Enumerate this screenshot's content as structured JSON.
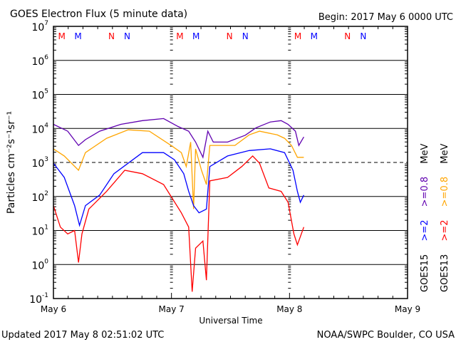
{
  "chart_data": {
    "type": "line",
    "title": "GOES Electron Flux (5 minute data)",
    "begin_label": "Begin: 2017 May 6 0000 UTC",
    "xlabel": "Universal Time",
    "ylabel": "Particles cm⁻²s⁻¹sr⁻¹",
    "x_unit": "hours since 2017-05-06 00:00 UTC",
    "xlim": [
      0,
      72
    ],
    "ylim_log10": [
      -1,
      7
    ],
    "y_scale": "log",
    "x_ticks": [
      {
        "h": 0,
        "label": "May 6"
      },
      {
        "h": 24,
        "label": "May 7"
      },
      {
        "h": 48,
        "label": "May 8"
      },
      {
        "h": 72,
        "label": "May 9"
      }
    ],
    "y_ticks": [
      {
        "exp": 7,
        "label": "7"
      },
      {
        "exp": 6,
        "label": "6"
      },
      {
        "exp": 5,
        "label": "5"
      },
      {
        "exp": 4,
        "label": "4"
      },
      {
        "exp": 3,
        "label": "3"
      },
      {
        "exp": 2,
        "label": "2"
      },
      {
        "exp": 1,
        "label": "1"
      },
      {
        "exp": 0,
        "label": "0"
      },
      {
        "exp": -1,
        "label": "-1"
      }
    ],
    "y_tick_base": "10",
    "threshold_log10": 3,
    "markers": [
      {
        "h": 1.7,
        "label": "M",
        "color": "#ff0000"
      },
      {
        "h": 5.0,
        "label": "M",
        "color": "#0000ff"
      },
      {
        "h": 11.8,
        "label": "N",
        "color": "#ff0000"
      },
      {
        "h": 15.0,
        "label": "N",
        "color": "#0000ff"
      },
      {
        "h": 25.7,
        "label": "M",
        "color": "#ff0000"
      },
      {
        "h": 29.0,
        "label": "M",
        "color": "#0000ff"
      },
      {
        "h": 35.8,
        "label": "N",
        "color": "#ff0000"
      },
      {
        "h": 39.0,
        "label": "N",
        "color": "#0000ff"
      },
      {
        "h": 49.7,
        "label": "M",
        "color": "#ff0000"
      },
      {
        "h": 53.0,
        "label": "M",
        "color": "#0000ff"
      },
      {
        "h": 59.8,
        "label": "N",
        "color": "#ff0000"
      },
      {
        "h": 63.0,
        "label": "N",
        "color": "#0000ff"
      }
    ],
    "series": [
      {
        "name": "GOES15 >=0.8 MeV",
        "color": "#6000b0",
        "points": [
          [
            0,
            4.12
          ],
          [
            2.9,
            3.92
          ],
          [
            5.1,
            3.5
          ],
          [
            6.5,
            3.67
          ],
          [
            9.4,
            3.92
          ],
          [
            13.7,
            4.12
          ],
          [
            18.1,
            4.23
          ],
          [
            22.4,
            4.29
          ],
          [
            25.3,
            4.06
          ],
          [
            27.5,
            3.92
          ],
          [
            28.9,
            3.6
          ],
          [
            30.4,
            3.15
          ],
          [
            31.4,
            3.92
          ],
          [
            32.5,
            3.6
          ],
          [
            35.4,
            3.6
          ],
          [
            39.0,
            3.8
          ],
          [
            41.2,
            4.02
          ],
          [
            44.1,
            4.19
          ],
          [
            46.3,
            4.23
          ],
          [
            47.7,
            4.12
          ],
          [
            49.2,
            3.92
          ],
          [
            49.9,
            3.5
          ],
          [
            50.9,
            3.75
          ]
        ]
      },
      {
        "name": "GOES13 >=0.8 MeV",
        "color": "#ffa500",
        "points": [
          [
            0,
            3.4
          ],
          [
            2.2,
            3.19
          ],
          [
            5.1,
            2.77
          ],
          [
            6.5,
            3.29
          ],
          [
            10.8,
            3.71
          ],
          [
            15.2,
            3.96
          ],
          [
            19.5,
            3.92
          ],
          [
            23.9,
            3.5
          ],
          [
            26.0,
            3.29
          ],
          [
            27.0,
            2.88
          ],
          [
            27.9,
            3.6
          ],
          [
            28.5,
            1.63
          ],
          [
            28.9,
            3.4
          ],
          [
            30.1,
            2.77
          ],
          [
            31.1,
            2.35
          ],
          [
            31.8,
            3.5
          ],
          [
            36.9,
            3.5
          ],
          [
            39.8,
            3.81
          ],
          [
            41.9,
            3.92
          ],
          [
            45.5,
            3.81
          ],
          [
            47.0,
            3.71
          ],
          [
            48.4,
            3.5
          ],
          [
            49.6,
            3.15
          ],
          [
            50.9,
            3.15
          ]
        ]
      },
      {
        "name": "GOES15 >=2 MeV",
        "color": "#0000ff",
        "points": [
          [
            0,
            2.98
          ],
          [
            2.2,
            2.56
          ],
          [
            4.3,
            1.73
          ],
          [
            5.3,
            1.15
          ],
          [
            6.5,
            1.73
          ],
          [
            9.4,
            2.04
          ],
          [
            12.3,
            2.67
          ],
          [
            18.1,
            3.29
          ],
          [
            22.4,
            3.29
          ],
          [
            24.6,
            3.08
          ],
          [
            26.5,
            2.67
          ],
          [
            27.5,
            2.15
          ],
          [
            28.5,
            1.73
          ],
          [
            29.6,
            1.52
          ],
          [
            31.1,
            1.63
          ],
          [
            31.8,
            2.88
          ],
          [
            35.4,
            3.19
          ],
          [
            39.8,
            3.35
          ],
          [
            44.1,
            3.4
          ],
          [
            47.0,
            3.29
          ],
          [
            48.7,
            2.77
          ],
          [
            49.6,
            2.15
          ],
          [
            50.2,
            1.83
          ],
          [
            50.9,
            2.04
          ]
        ]
      },
      {
        "name": "GOES13 >=2 MeV",
        "color": "#ff0000",
        "points": [
          [
            0,
            1.73
          ],
          [
            1.4,
            1.1
          ],
          [
            2.9,
            0.9
          ],
          [
            4.3,
            1.0
          ],
          [
            5.1,
            0.06
          ],
          [
            5.8,
            0.9
          ],
          [
            7.2,
            1.63
          ],
          [
            10.8,
            2.15
          ],
          [
            14.5,
            2.77
          ],
          [
            18.1,
            2.67
          ],
          [
            22.4,
            2.35
          ],
          [
            26.0,
            1.52
          ],
          [
            27.5,
            1.1
          ],
          [
            28.2,
            -0.8
          ],
          [
            28.9,
            0.48
          ],
          [
            30.4,
            0.69
          ],
          [
            31.1,
            -0.46
          ],
          [
            31.8,
            2.46
          ],
          [
            35.4,
            2.56
          ],
          [
            38.3,
            2.88
          ],
          [
            40.5,
            3.19
          ],
          [
            41.9,
            2.98
          ],
          [
            43.8,
            2.25
          ],
          [
            46.3,
            2.15
          ],
          [
            47.7,
            1.83
          ],
          [
            48.9,
            0.9
          ],
          [
            49.6,
            0.58
          ],
          [
            50.9,
            1.1
          ]
        ]
      }
    ],
    "legend": {
      "placement": "right",
      "columns": [
        {
          "satellite": "GOES15",
          "low": ">=2",
          "low_color": "#0000ff",
          "high": ">=0.8",
          "high_color": "#6000b0",
          "unit": "MeV"
        },
        {
          "satellite": "GOES13",
          "low": ">=2",
          "low_color": "#ff0000",
          "high": ">=0.8",
          "high_color": "#ffa500",
          "unit": "MeV"
        }
      ]
    }
  },
  "footer": {
    "updated": "Updated 2017 May  8 02:51:02 UTC",
    "source": "NOAA/SWPC Boulder, CO USA"
  }
}
